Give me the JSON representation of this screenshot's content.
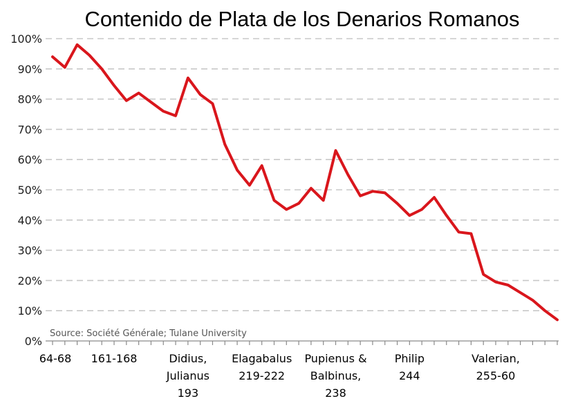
{
  "chart_data": {
    "type": "line",
    "title": "Contenido de Plata de los Denarios Romanos",
    "source": "Source: Société Générale; Tulane University",
    "xlabel": "",
    "ylabel": "",
    "ylim": [
      0,
      100
    ],
    "y_ticks": [
      "0%",
      "10%",
      "20%",
      "30%",
      "40%",
      "50%",
      "60%",
      "70%",
      "80%",
      "90%",
      "100%"
    ],
    "x_labels": [
      {
        "index": 0,
        "lines": [
          "64-68"
        ]
      },
      {
        "index": 5,
        "lines": [
          "161-168"
        ]
      },
      {
        "index": 11,
        "lines": [
          "Didius,",
          "Julianus",
          "193"
        ]
      },
      {
        "index": 17,
        "lines": [
          "Elagabalus",
          "219-222"
        ]
      },
      {
        "index": 23,
        "lines": [
          "Pupienus &",
          "Balbinus,",
          "238"
        ]
      },
      {
        "index": 29,
        "lines": [
          "Philip",
          "244"
        ]
      },
      {
        "index": 36,
        "lines": [
          "Valerian,",
          "255-60"
        ]
      }
    ],
    "series": [
      {
        "name": "Contenido de plata",
        "color": "#d9161c",
        "values": [
          94,
          90.5,
          98,
          94.5,
          90,
          84.5,
          79.5,
          82,
          79,
          76,
          74.5,
          87,
          81.5,
          78.5,
          65,
          56.5,
          51.5,
          58,
          46.5,
          43.5,
          45.5,
          50.5,
          46.5,
          63,
          55,
          48,
          49.5,
          49,
          45.5,
          41.5,
          43.5,
          47.5,
          41.5,
          36,
          35.5,
          22,
          19.5,
          18.5,
          16,
          13.5,
          10,
          7
        ]
      }
    ],
    "grid": true,
    "legend": "none"
  }
}
